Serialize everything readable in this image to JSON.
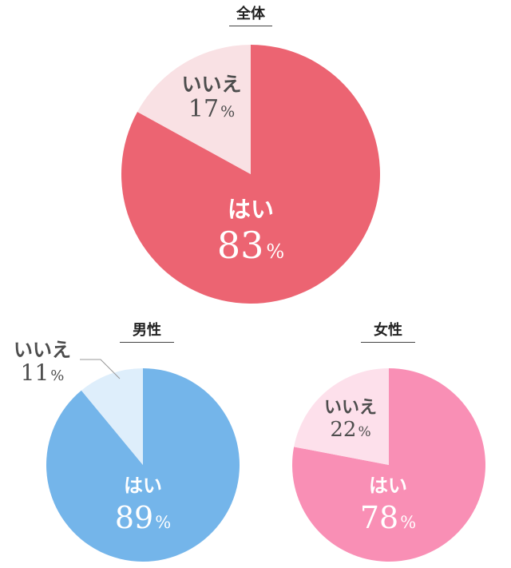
{
  "chart_data": [
    {
      "type": "pie",
      "title": "全体",
      "slices": [
        {
          "label": "はい",
          "value": 83,
          "value_label": "83",
          "unit": "%",
          "color": "#ec6472"
        },
        {
          "label": "いいえ",
          "value": 17,
          "value_label": "17",
          "unit": "%",
          "color": "#f9e1e4"
        }
      ]
    },
    {
      "type": "pie",
      "title": "男性",
      "slices": [
        {
          "label": "はい",
          "value": 89,
          "value_label": "89",
          "unit": "%",
          "color": "#74b5ea"
        },
        {
          "label": "いいえ",
          "value": 11,
          "value_label": "11",
          "unit": "%",
          "color": "#deeefb"
        }
      ]
    },
    {
      "type": "pie",
      "title": "女性",
      "slices": [
        {
          "label": "はい",
          "value": 78,
          "value_label": "78",
          "unit": "%",
          "color": "#f98fb5"
        },
        {
          "label": "いいえ",
          "value": 22,
          "value_label": "22",
          "unit": "%",
          "color": "#fde0eb"
        }
      ]
    }
  ]
}
